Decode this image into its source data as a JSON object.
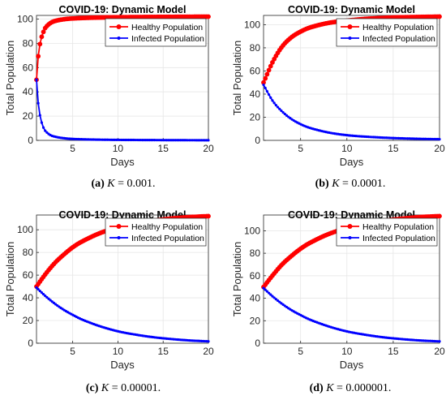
{
  "chart_data": [
    {
      "type": "line",
      "title": "COVID-19: Dynamic Model",
      "xlabel": "Days",
      "ylabel": "Total Population",
      "xlim": [
        1,
        20
      ],
      "ylim": [
        0,
        103
      ],
      "xticks": [
        5,
        10,
        15,
        20
      ],
      "yticks": [
        0,
        20,
        40,
        60,
        80,
        100
      ],
      "grid": true,
      "legend_position": "top-right",
      "caption": {
        "label": "(a)",
        "text": "K = 0.001."
      },
      "series": [
        {
          "name": "Healthy Population",
          "color": "#ff0000",
          "marker": "circle",
          "points": [
            [
              1,
              50
            ],
            [
              1.2,
              70
            ],
            [
              1.4,
              80
            ],
            [
              1.6,
              86
            ],
            [
              1.8,
              90
            ],
            [
              2,
              93
            ],
            [
              2.5,
              96.5
            ],
            [
              3,
              98.3
            ],
            [
              4,
              99.8
            ],
            [
              5,
              100.5
            ],
            [
              7,
              101.1
            ],
            [
              10,
              101.5
            ],
            [
              15,
              101.8
            ],
            [
              20,
              102
            ]
          ]
        },
        {
          "name": "Infected Population",
          "color": "#0000ff",
          "marker": "asterisk",
          "points": [
            [
              1,
              50
            ],
            [
              1.2,
              30
            ],
            [
              1.4,
              20
            ],
            [
              1.6,
              14
            ],
            [
              1.8,
              10
            ],
            [
              2,
              7.6
            ],
            [
              2.5,
              4.5
            ],
            [
              3,
              3.1
            ],
            [
              4,
              1.8
            ],
            [
              5,
              1.2
            ],
            [
              7,
              0.7
            ],
            [
              10,
              0.4
            ],
            [
              15,
              0.2
            ],
            [
              20,
              0.1
            ]
          ]
        }
      ]
    },
    {
      "type": "line",
      "title": "COVID-19: Dynamic Model",
      "xlabel": "Days",
      "ylabel": "Total Population",
      "xlim": [
        1,
        20
      ],
      "ylim": [
        0,
        108
      ],
      "xticks": [
        5,
        10,
        15,
        20
      ],
      "yticks": [
        0,
        20,
        40,
        60,
        80,
        100
      ],
      "grid": true,
      "legend_position": "top-right",
      "caption": {
        "label": "(b)",
        "text": "K = 0.0001."
      },
      "series": [
        {
          "name": "Healthy Population",
          "color": "#ff0000",
          "marker": "circle",
          "points": [
            [
              1,
              50
            ],
            [
              2,
              68
            ],
            [
              3,
              81
            ],
            [
              4,
              89
            ],
            [
              5,
              94
            ],
            [
              6,
              97.5
            ],
            [
              8,
              101.5
            ],
            [
              10,
              103.5
            ],
            [
              12,
              105
            ],
            [
              15,
              106.2
            ],
            [
              18,
              106.7
            ],
            [
              20,
              107
            ]
          ]
        },
        {
          "name": "Infected Population",
          "color": "#0000ff",
          "marker": "asterisk",
          "points": [
            [
              1,
              48
            ],
            [
              2,
              34
            ],
            [
              3,
              25
            ],
            [
              4,
              18.5
            ],
            [
              5,
              14
            ],
            [
              6,
              10.8
            ],
            [
              8,
              6.8
            ],
            [
              10,
              4.5
            ],
            [
              12,
              3.2
            ],
            [
              15,
              2
            ],
            [
              18,
              1.3
            ],
            [
              20,
              1
            ]
          ]
        }
      ]
    },
    {
      "type": "line",
      "title": "COVID-19: Dynamic Model",
      "xlabel": "Days",
      "ylabel": "Total Population",
      "xlim": [
        1,
        20
      ],
      "ylim": [
        0,
        113
      ],
      "xticks": [
        5,
        10,
        15,
        20
      ],
      "yticks": [
        0,
        20,
        40,
        60,
        80,
        100
      ],
      "grid": true,
      "legend_position": "top-right",
      "caption": {
        "label": "(c)",
        "text": "K = 0.00001."
      },
      "series": [
        {
          "name": "Healthy Population",
          "color": "#ff0000",
          "marker": "circle",
          "points": [
            [
              1,
              50
            ],
            [
              2,
              61
            ],
            [
              3,
              70.5
            ],
            [
              4,
              78
            ],
            [
              5,
              84.5
            ],
            [
              6,
              89.5
            ],
            [
              8,
              97
            ],
            [
              10,
              102
            ],
            [
              12,
              105.5
            ],
            [
              14,
              108
            ],
            [
              16,
              110
            ],
            [
              18,
              111.2
            ],
            [
              20,
              112
            ]
          ]
        },
        {
          "name": "Infected Population",
          "color": "#0000ff",
          "marker": "asterisk",
          "points": [
            [
              1,
              49
            ],
            [
              2,
              41.5
            ],
            [
              3,
              35
            ],
            [
              4,
              29.5
            ],
            [
              5,
              25
            ],
            [
              6,
              21
            ],
            [
              8,
              15
            ],
            [
              10,
              10.5
            ],
            [
              12,
              7.5
            ],
            [
              14,
              5.2
            ],
            [
              16,
              3.6
            ],
            [
              18,
              2.4
            ],
            [
              20,
              1.6
            ]
          ]
        }
      ]
    },
    {
      "type": "line",
      "title": "COVID-19: Dynamic Model",
      "xlabel": "Days",
      "ylabel": "Total Population",
      "xlim": [
        1,
        20
      ],
      "ylim": [
        0,
        114
      ],
      "xticks": [
        5,
        10,
        15,
        20
      ],
      "yticks": [
        0,
        20,
        40,
        60,
        80,
        100
      ],
      "grid": true,
      "legend_position": "top-right",
      "caption": {
        "label": "(d)",
        "text": "K = 0.000001."
      },
      "series": [
        {
          "name": "Healthy Population",
          "color": "#ff0000",
          "marker": "circle",
          "points": [
            [
              1,
              50
            ],
            [
              2,
              60.5
            ],
            [
              3,
              70
            ],
            [
              4,
              77.5
            ],
            [
              5,
              84
            ],
            [
              6,
              89.2
            ],
            [
              8,
              97
            ],
            [
              10,
              102.3
            ],
            [
              12,
              106
            ],
            [
              14,
              108.8
            ],
            [
              16,
              110.8
            ],
            [
              18,
              112.2
            ],
            [
              20,
              113
            ]
          ]
        },
        {
          "name": "Infected Population",
          "color": "#0000ff",
          "marker": "asterisk",
          "points": [
            [
              1,
              49
            ],
            [
              2,
              41.5
            ],
            [
              3,
              35
            ],
            [
              4,
              29.5
            ],
            [
              5,
              25
            ],
            [
              6,
              21
            ],
            [
              8,
              15
            ],
            [
              10,
              10.5
            ],
            [
              12,
              7.5
            ],
            [
              14,
              5.2
            ],
            [
              16,
              3.6
            ],
            [
              18,
              2.4
            ],
            [
              20,
              1.6
            ]
          ]
        }
      ]
    }
  ]
}
